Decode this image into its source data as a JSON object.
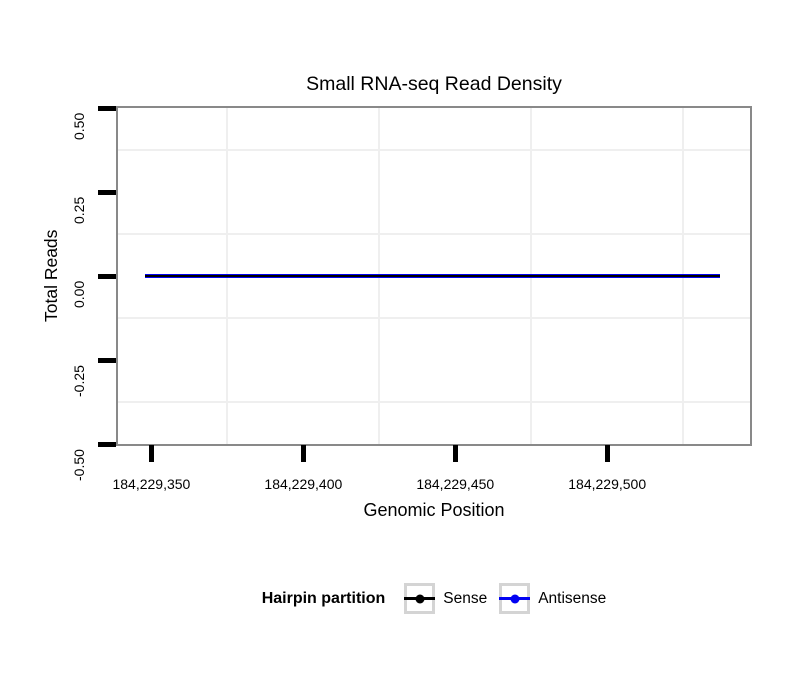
{
  "page": {
    "background": "#ffffff"
  },
  "chart": {
    "title": "Small RNA-seq Read Density",
    "xlabel": "Genomic Position",
    "ylabel": "Total Reads"
  },
  "legend": {
    "title": "Hairpin partition",
    "items": [
      {
        "label": "Sense",
        "color": "#000000"
      },
      {
        "label": "Antisense",
        "color": "#0202F2"
      }
    ]
  },
  "chart_data": {
    "type": "line",
    "title": "Small RNA-seq Read Density",
    "xlabel": "Genomic Position",
    "ylabel": "Total Reads",
    "xlim": [
      184229339,
      184229547
    ],
    "ylim": [
      -0.5,
      0.5
    ],
    "x_tick_values": [
      184229350,
      184229400,
      184229450,
      184229500
    ],
    "x_tick_labels": [
      "184,229,350",
      "184,229,400",
      "184,229,450",
      "184,229,500"
    ],
    "y_tick_values": [
      0.5,
      0.25,
      0,
      -0.25,
      -0.5
    ],
    "y_tick_labels": [
      "0.50",
      "0.25",
      "0.00",
      "-0.25",
      "-0.50"
    ],
    "grid": "minor gridlines only, light gray, majors invisible",
    "legend_position": "bottom",
    "legend_title": "Hairpin partition",
    "series": [
      {
        "name": "Sense",
        "color": "#000000",
        "x": [
          184229348,
          184229537
        ],
        "y": [
          0,
          0
        ]
      },
      {
        "name": "Antisense",
        "color": "#0202F2",
        "x": [
          184229348,
          184229537
        ],
        "y": [
          0,
          0
        ]
      }
    ],
    "colors": {
      "panel_border": "#898989",
      "minor_grid": "#EFEFEF",
      "tick": "#000000"
    }
  }
}
